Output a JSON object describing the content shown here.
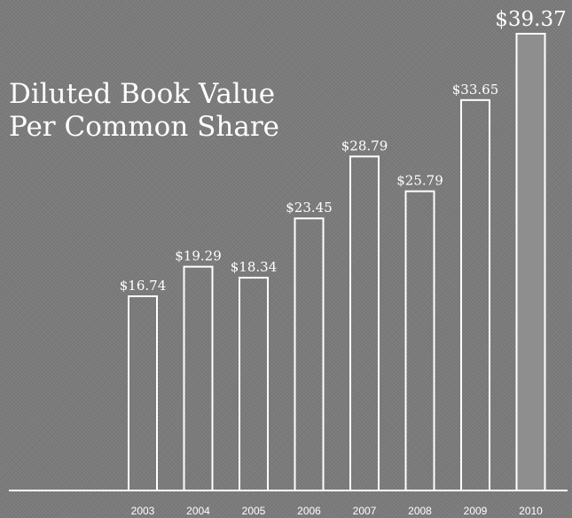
{
  "chart_data": {
    "type": "bar",
    "title": "Diluted Book Value Per Common Share",
    "categories": [
      "2003",
      "2004",
      "2005",
      "2006",
      "2007",
      "2008",
      "2009",
      "2010"
    ],
    "values": [
      16.74,
      19.29,
      18.34,
      23.45,
      28.79,
      25.79,
      33.65,
      39.37
    ],
    "value_labels": [
      "$16.74",
      "$19.29",
      "$18.34",
      "$23.45",
      "$28.79",
      "$25.79",
      "$33.65",
      "$39.37"
    ],
    "color": "#ffffff"
  }
}
